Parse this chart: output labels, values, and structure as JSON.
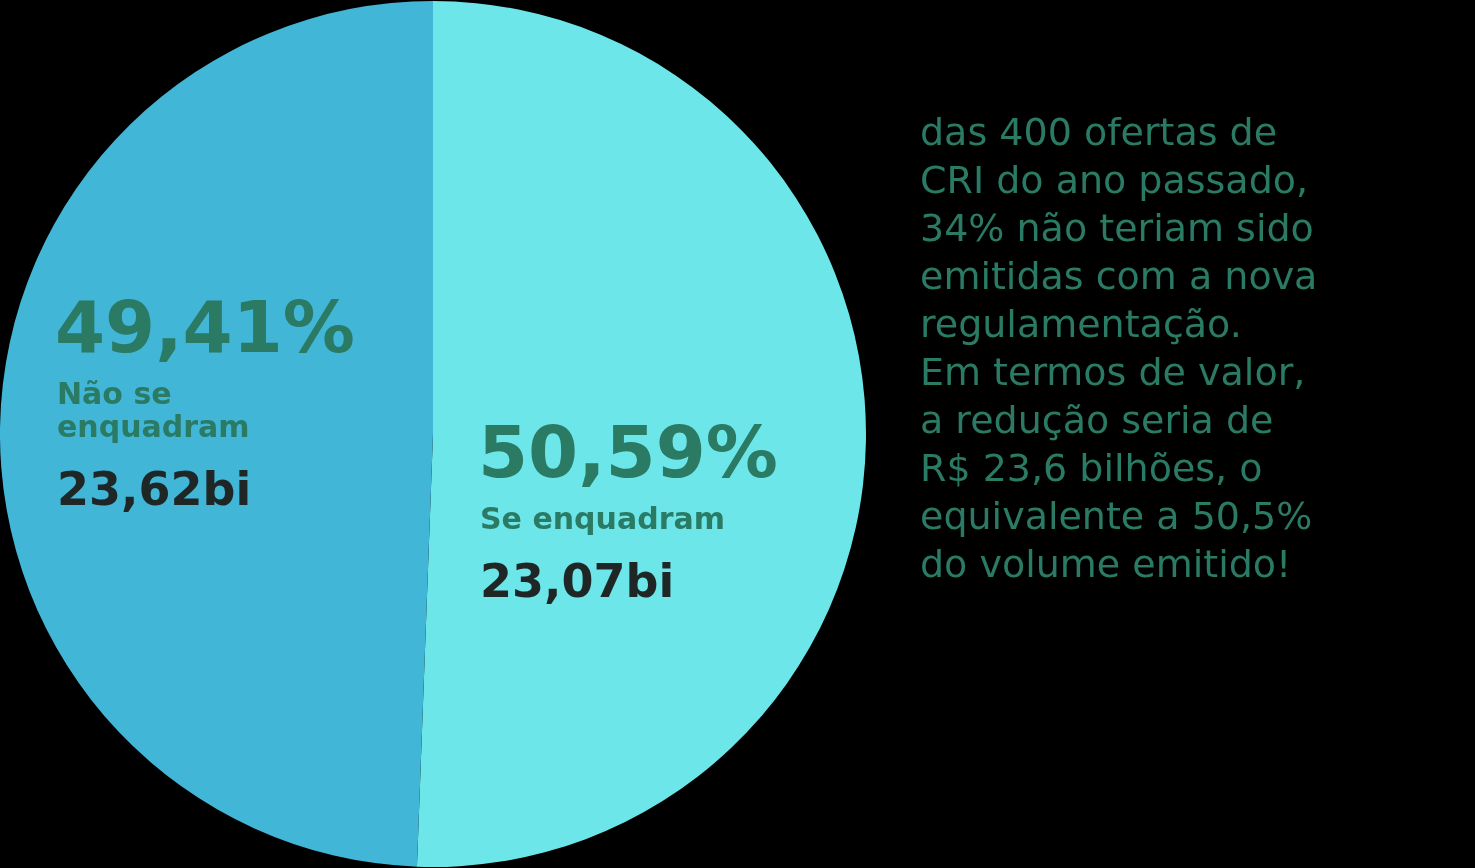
{
  "chart_data": {
    "type": "pie",
    "categories": [
      "Se enquadram",
      "Não se enquadram"
    ],
    "values": [
      50.59,
      49.41
    ],
    "colors": [
      "#6de6ea",
      "#41b6d7"
    ],
    "value_labels": [
      "50,59%",
      "49,41%"
    ],
    "annotations": [
      "23,07bi",
      "23,62bi",
      "das 400 ofertas de\nCRI do ano passado,\n34% não teriam sido\nemitidas com a nova\nregulamentação.\nEm termos de valor,\na redução seria de\nR$ 23,6 bilhões, o\nequivalente a 50,5%\ndo volume emitido!"
    ]
  }
}
